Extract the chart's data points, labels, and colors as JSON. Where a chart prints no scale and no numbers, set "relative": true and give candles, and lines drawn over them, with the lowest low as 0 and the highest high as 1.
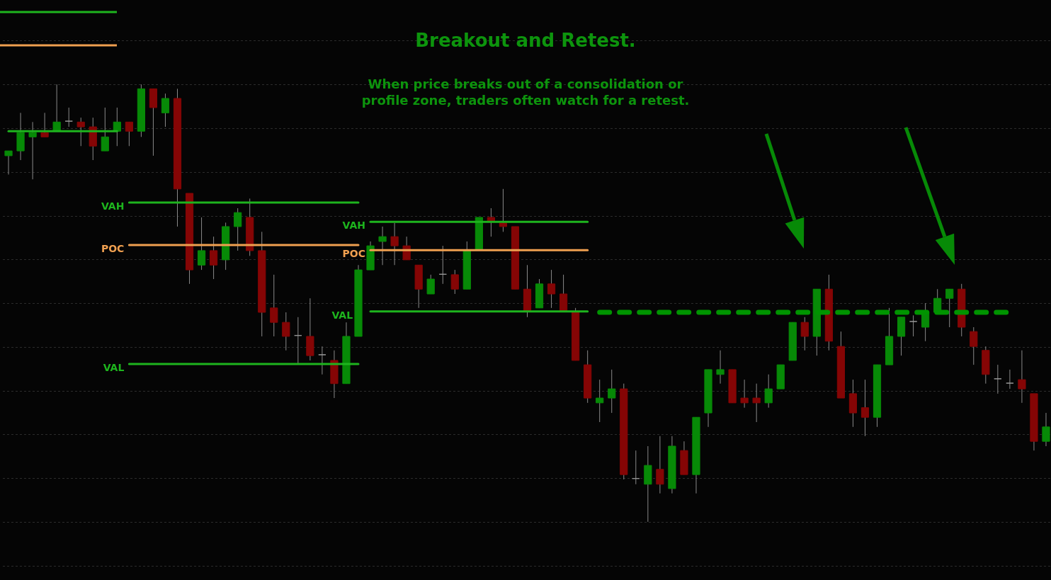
{
  "chart_data": {
    "type": "candlestick",
    "title": "Breakout and Retest.",
    "subtitle": "When price breaks out of a consolidation or profile zone, traders often watch for a retest.",
    "relative": true,
    "grid": true,
    "colors": [
      "#078a07",
      "#078a07",
      "#078a07",
      "#850505",
      "#078a07",
      "#9a9a9a",
      "#850505",
      "#850505",
      "#078a07",
      "#078a07",
      "#850505",
      "#078a07",
      "#850505",
      "#078a07",
      "#850505",
      "#850505",
      "#078a07",
      "#850505",
      "#078a07",
      "#078a07",
      "#850505",
      "#850505",
      "#850505",
      "#850505",
      "#9a9a9a",
      "#850505",
      "#9a9a9a",
      "#850505",
      "#078a07",
      "#078a07",
      "#078a07",
      "#078a07",
      "#850505",
      "#850505",
      "#850505",
      "#078a07",
      "#9a9a9a",
      "#850505",
      "#078a07",
      "#078a07",
      "#850505",
      "#850505",
      "#850505",
      "#850505",
      "#078a07",
      "#850505",
      "#850505",
      "#850505",
      "#850505",
      "#078a07",
      "#078a07",
      "#850505",
      "#9a9a9a",
      "#078a07",
      "#850505",
      "#078a07",
      "#850505",
      "#078a07",
      "#078a07",
      "#078a07",
      "#850505",
      "#850505",
      "#850505",
      "#078a07",
      "#078a07",
      "#078a07",
      "#850505",
      "#078a07",
      "#850505",
      "#850505",
      "#850505",
      "#850505",
      "#078a07",
      "#078a07",
      "#078a07",
      "#9a9a9a",
      "#078a07",
      "#078a07",
      "#078a07",
      "#850505",
      "#850505",
      "#850505",
      "#9a9a9a",
      "#9a9a9a",
      "#850505",
      "#850505",
      "#078a07"
    ],
    "categories": [
      null,
      null,
      null,
      null,
      null,
      null,
      null,
      null,
      null,
      null,
      null,
      null,
      null,
      null,
      null,
      null,
      null,
      null,
      null,
      null,
      null,
      null,
      null,
      null,
      null,
      null,
      null,
      null,
      null,
      null,
      null,
      null,
      null,
      null,
      null,
      null,
      null,
      null,
      null,
      null,
      null,
      null,
      null,
      null,
      null,
      null,
      null,
      null,
      null,
      null,
      null,
      null,
      null,
      null,
      null,
      null,
      null,
      null,
      null,
      null,
      null,
      null,
      null,
      null,
      null,
      null,
      null,
      null,
      null,
      null,
      null,
      null,
      null,
      null,
      null,
      null,
      null,
      null,
      null,
      null,
      null,
      null,
      null,
      null,
      null,
      null,
      null
    ],
    "ohlc": [
      [
        0.837,
        0.848,
        0.794,
        0.848
      ],
      [
        0.848,
        0.935,
        0.827,
        0.89
      ],
      [
        0.88,
        0.914,
        0.783,
        0.89
      ],
      [
        0.89,
        0.935,
        0.88,
        0.88
      ],
      [
        0.893,
        1,
        0.893,
        0.914
      ],
      [
        0.916,
        0.947,
        0.903,
        0.916
      ],
      [
        0.914,
        0.924,
        0.859,
        0.903
      ],
      [
        0.903,
        0.924,
        0.827,
        0.859
      ],
      [
        0.848,
        0.947,
        0.848,
        0.88
      ],
      [
        0.893,
        0.947,
        0.859,
        0.914
      ],
      [
        0.914,
        0.914,
        0.859,
        0.893
      ],
      [
        0.893,
        1,
        0.88,
        0.99
      ],
      [
        0.99,
        0.99,
        0.837,
        0.947
      ],
      [
        0.935,
        0.979,
        0.903,
        0.968
      ],
      [
        0.968,
        0.99,
        0.675,
        0.761
      ],
      [
        0.751,
        0.751,
        0.544,
        0.576
      ],
      [
        0.587,
        0.696,
        0.576,
        0.62
      ],
      [
        0.62,
        0.652,
        0.555,
        0.587
      ],
      [
        0.599,
        0.684,
        0.576,
        0.675
      ],
      [
        0.675,
        0.717,
        0.62,
        0.707
      ],
      [
        0.696,
        0.739,
        0.608,
        0.62
      ],
      [
        0.62,
        0.663,
        0.424,
        0.479
      ],
      [
        0.489,
        0.565,
        0.424,
        0.456
      ],
      [
        0.456,
        0.479,
        0.392,
        0.424
      ],
      [
        0.426,
        0.468,
        0.362,
        0.426
      ],
      [
        0.424,
        0.511,
        0.369,
        0.38
      ],
      [
        0.382,
        0.401,
        0.337,
        0.382
      ],
      [
        0.369,
        0.392,
        0.283,
        0.316
      ],
      [
        0.316,
        0.456,
        0.316,
        0.424
      ],
      [
        0.424,
        0.587,
        0.424,
        0.576
      ],
      [
        0.576,
        0.641,
        0.576,
        0.631
      ],
      [
        0.641,
        0.675,
        0.587,
        0.652
      ],
      [
        0.652,
        0.683,
        0.587,
        0.631
      ],
      [
        0.631,
        0.652,
        0.599,
        0.599
      ],
      [
        0.587,
        0.587,
        0.489,
        0.532
      ],
      [
        0.521,
        0.565,
        0.521,
        0.555
      ],
      [
        0.566,
        0.631,
        0.544,
        0.566
      ],
      [
        0.565,
        0.576,
        0.521,
        0.532
      ],
      [
        0.532,
        0.641,
        0.532,
        0.62
      ],
      [
        0.623,
        0.696,
        0.623,
        0.696
      ],
      [
        0.696,
        0.717,
        0.652,
        0.688
      ],
      [
        0.683,
        0.761,
        0.663,
        0.675
      ],
      [
        0.675,
        0.675,
        0.532,
        0.532
      ],
      [
        0.532,
        0.587,
        0.468,
        0.482
      ],
      [
        0.489,
        0.555,
        0.489,
        0.544
      ],
      [
        0.544,
        0.576,
        0.489,
        0.521
      ],
      [
        0.521,
        0.565,
        0.482,
        0.482
      ],
      [
        0.481,
        0.489,
        0.369,
        0.369
      ],
      [
        0.359,
        0.392,
        0.272,
        0.283
      ],
      [
        0.272,
        0.325,
        0.228,
        0.283
      ],
      [
        0.283,
        0.348,
        0.249,
        0.304
      ],
      [
        0.304,
        0.316,
        0.097,
        0.108
      ],
      [
        0.099,
        0.163,
        0.086,
        0.099
      ],
      [
        0.086,
        0.173,
        0,
        0.129
      ],
      [
        0.12,
        0.196,
        0.065,
        0.086
      ],
      [
        0.076,
        0.196,
        0.065,
        0.173
      ],
      [
        0.163,
        0.184,
        0.108,
        0.108
      ],
      [
        0.108,
        0.239,
        0.065,
        0.239
      ],
      [
        0.249,
        0.348,
        0.217,
        0.348
      ],
      [
        0.337,
        0.392,
        0.316,
        0.348
      ],
      [
        0.348,
        0.348,
        0.272,
        0.272
      ],
      [
        0.283,
        0.325,
        0.261,
        0.272
      ],
      [
        0.283,
        0.316,
        0.228,
        0.272
      ],
      [
        0.272,
        0.337,
        0.261,
        0.304
      ],
      [
        0.304,
        0.359,
        0.304,
        0.359
      ],
      [
        0.369,
        0.456,
        0.369,
        0.456
      ],
      [
        0.456,
        0.468,
        0.392,
        0.424
      ],
      [
        0.424,
        0.532,
        0.38,
        0.532
      ],
      [
        0.532,
        0.565,
        0.392,
        0.413
      ],
      [
        0.401,
        0.435,
        0.283,
        0.283
      ],
      [
        0.293,
        0.325,
        0.217,
        0.249
      ],
      [
        0.261,
        0.325,
        0.196,
        0.239
      ],
      [
        0.239,
        0.359,
        0.217,
        0.359
      ],
      [
        0.359,
        0.489,
        0.359,
        0.424
      ],
      [
        0.424,
        0.468,
        0.38,
        0.468
      ],
      [
        0.458,
        0.472,
        0.424,
        0.458
      ],
      [
        0.445,
        0.5,
        0.413,
        0.479
      ],
      [
        0.479,
        0.532,
        0.479,
        0.511
      ],
      [
        0.511,
        0.532,
        0.445,
        0.532
      ],
      [
        0.532,
        0.544,
        0.424,
        0.445
      ],
      [
        0.435,
        0.445,
        0.359,
        0.401
      ],
      [
        0.392,
        0.401,
        0.316,
        0.337
      ],
      [
        0.327,
        0.359,
        0.293,
        0.327
      ],
      [
        0.317,
        0.348,
        0.304,
        0.317
      ],
      [
        0.325,
        0.392,
        0.272,
        0.304
      ],
      [
        0.293,
        0.293,
        0.163,
        0.184
      ],
      [
        0.184,
        0.249,
        0.173,
        0.217
      ]
    ],
    "series": [
      {
        "type": "line",
        "color": "#1eb41e",
        "values": [
          0.893,
          0.893,
          0.893,
          0.893,
          0.893,
          0.893,
          0.893,
          0.893,
          0.893,
          0.893,
          null,
          null,
          null,
          null,
          null,
          null,
          null,
          null,
          null,
          null,
          null,
          null,
          null,
          null,
          null,
          null,
          null,
          null,
          null,
          null,
          null,
          null,
          null,
          null,
          null,
          null,
          null,
          null,
          null,
          null,
          null,
          null,
          null,
          null,
          null,
          null,
          null,
          null,
          null,
          null,
          null,
          null,
          null,
          null,
          null,
          null,
          null,
          null,
          null,
          null,
          null,
          null,
          null,
          null,
          null,
          null,
          null,
          null,
          null,
          null,
          null,
          null,
          null,
          null,
          null,
          null,
          null,
          null,
          null,
          null,
          null,
          null,
          null,
          null,
          null,
          null,
          null
        ]
      },
      {
        "type": "line",
        "name": "VAH",
        "color": "#1eb41e",
        "values": [
          null,
          null,
          null,
          null,
          null,
          null,
          null,
          null,
          null,
          null,
          0.73,
          0.73,
          0.73,
          0.73,
          0.73,
          0.73,
          0.73,
          0.73,
          0.73,
          0.73,
          0.73,
          0.73,
          0.73,
          0.73,
          0.73,
          0.73,
          0.73,
          0.73,
          0.73,
          0.73,
          null,
          null,
          null,
          null,
          null,
          null,
          null,
          null,
          null,
          null,
          null,
          null,
          null,
          null,
          null,
          null,
          null,
          null,
          null,
          null,
          null,
          null,
          null,
          null,
          null,
          null,
          null,
          null,
          null,
          null,
          null,
          null,
          null,
          null,
          null,
          null,
          null,
          null,
          null,
          null,
          null,
          null,
          null,
          null,
          null,
          null,
          null,
          null,
          null,
          null,
          null,
          null,
          null,
          null,
          null,
          null,
          null
        ]
      },
      {
        "type": "line",
        "name": "POC",
        "color": "#f0a050",
        "values": [
          null,
          null,
          null,
          null,
          null,
          null,
          null,
          null,
          null,
          null,
          0.633,
          0.633,
          0.633,
          0.633,
          0.633,
          0.633,
          0.633,
          0.633,
          0.633,
          0.633,
          0.633,
          0.633,
          0.633,
          0.633,
          0.633,
          0.633,
          0.633,
          0.633,
          0.633,
          0.633,
          null,
          null,
          null,
          null,
          null,
          null,
          null,
          null,
          null,
          null,
          null,
          null,
          null,
          null,
          null,
          null,
          null,
          null,
          null,
          null,
          null,
          null,
          null,
          null,
          null,
          null,
          null,
          null,
          null,
          null,
          null,
          null,
          null,
          null,
          null,
          null,
          null,
          null,
          null,
          null,
          null,
          null,
          null,
          null,
          null,
          null,
          null,
          null,
          null,
          null,
          null,
          null,
          null,
          null,
          null,
          null,
          null
        ]
      },
      {
        "type": "line",
        "name": "VAL",
        "color": "#1eb41e",
        "values": [
          null,
          null,
          null,
          null,
          null,
          null,
          null,
          null,
          null,
          null,
          0.361,
          0.361,
          0.361,
          0.361,
          0.361,
          0.361,
          0.361,
          0.361,
          0.361,
          0.361,
          0.361,
          0.361,
          0.361,
          0.361,
          0.361,
          0.361,
          0.361,
          0.361,
          0.361,
          0.361,
          null,
          null,
          null,
          null,
          null,
          null,
          null,
          null,
          null,
          null,
          null,
          null,
          null,
          null,
          null,
          null,
          null,
          null,
          null,
          null,
          null,
          null,
          null,
          null,
          null,
          null,
          null,
          null,
          null,
          null,
          null,
          null,
          null,
          null,
          null,
          null,
          null,
          null,
          null,
          null,
          null,
          null,
          null,
          null,
          null,
          null,
          null,
          null,
          null,
          null,
          null,
          null,
          null,
          null,
          null,
          null,
          null
        ]
      },
      {
        "type": "line",
        "name": "VAH",
        "color": "#1eb41e",
        "values": [
          null,
          null,
          null,
          null,
          null,
          null,
          null,
          null,
          null,
          null,
          null,
          null,
          null,
          null,
          null,
          null,
          null,
          null,
          null,
          null,
          null,
          null,
          null,
          null,
          null,
          null,
          null,
          null,
          null,
          null,
          0.686,
          0.686,
          0.686,
          0.686,
          0.686,
          0.686,
          0.686,
          0.686,
          0.686,
          0.686,
          0.686,
          0.686,
          0.686,
          0.686,
          0.686,
          0.686,
          0.686,
          0.686,
          0.686,
          null,
          null,
          null,
          null,
          null,
          null,
          null,
          null,
          null,
          null,
          null,
          null,
          null,
          null,
          null,
          null,
          null,
          null,
          null,
          null,
          null,
          null,
          null,
          null,
          null,
          null,
          null,
          null,
          null,
          null,
          null,
          null,
          null,
          null,
          null,
          null,
          null,
          null
        ]
      },
      {
        "type": "line",
        "name": "POC",
        "color": "#f0a050",
        "values": [
          null,
          null,
          null,
          null,
          null,
          null,
          null,
          null,
          null,
          null,
          null,
          null,
          null,
          null,
          null,
          null,
          null,
          null,
          null,
          null,
          null,
          null,
          null,
          null,
          null,
          null,
          null,
          null,
          null,
          null,
          0.621,
          0.621,
          0.621,
          0.621,
          0.621,
          0.621,
          0.621,
          0.621,
          0.621,
          0.621,
          0.621,
          0.621,
          0.621,
          0.621,
          0.621,
          0.621,
          0.621,
          0.621,
          0.621,
          null,
          null,
          null,
          null,
          null,
          null,
          null,
          null,
          null,
          null,
          null,
          null,
          null,
          null,
          null,
          null,
          null,
          null,
          null,
          null,
          null,
          null,
          null,
          null,
          null,
          null,
          null,
          null,
          null,
          null,
          null,
          null,
          null,
          null,
          null,
          null,
          null,
          null
        ]
      },
      {
        "type": "line",
        "name": "VAL",
        "color": "#1eb41e",
        "values": [
          null,
          null,
          null,
          null,
          null,
          null,
          null,
          null,
          null,
          null,
          null,
          null,
          null,
          null,
          null,
          null,
          null,
          null,
          null,
          null,
          null,
          null,
          null,
          null,
          null,
          null,
          null,
          null,
          null,
          null,
          0.481,
          0.481,
          0.481,
          0.481,
          0.481,
          0.481,
          0.481,
          0.481,
          0.481,
          0.481,
          0.481,
          0.481,
          0.481,
          0.481,
          0.481,
          0.481,
          0.481,
          0.481,
          0.481,
          null,
          null,
          null,
          null,
          null,
          null,
          null,
          null,
          null,
          null,
          null,
          null,
          null,
          null,
          null,
          null,
          null,
          null,
          null,
          null,
          null,
          null,
          null,
          null,
          null,
          null,
          null,
          null,
          null,
          null,
          null,
          null,
          null,
          null,
          null,
          null,
          null,
          null
        ]
      },
      {
        "type": "line",
        "color": "#009400",
        "line_style": "dashed",
        "values": [
          null,
          null,
          null,
          null,
          null,
          null,
          null,
          null,
          null,
          null,
          null,
          null,
          null,
          null,
          null,
          null,
          null,
          null,
          null,
          null,
          null,
          null,
          null,
          null,
          null,
          null,
          null,
          null,
          null,
          null,
          null,
          null,
          null,
          null,
          null,
          null,
          null,
          null,
          null,
          null,
          null,
          null,
          null,
          null,
          null,
          null,
          null,
          null,
          null,
          0.479,
          0.479,
          0.479,
          0.479,
          0.479,
          0.479,
          0.479,
          0.479,
          0.479,
          0.479,
          0.479,
          0.479,
          0.479,
          0.479,
          0.479,
          0.479,
          0.479,
          0.479,
          0.479,
          0.479,
          0.479,
          0.479,
          0.479,
          0.479,
          0.479,
          0.479,
          0.479,
          0.479,
          0.479,
          0.479,
          0.479,
          0.479,
          0.479,
          0.479,
          0.479,
          null,
          null,
          null
        ]
      }
    ]
  }
}
